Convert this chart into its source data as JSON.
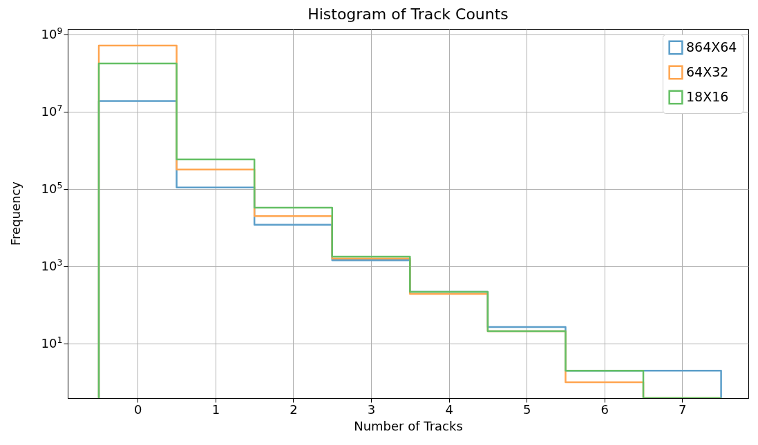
{
  "chart_data": {
    "type": "histogram",
    "title": "Histogram of Track Counts",
    "xlabel": "Number of Tracks",
    "ylabel": "Frequency",
    "bins": [
      -0.5,
      0.5,
      1.5,
      2.5,
      3.5,
      4.5,
      5.5,
      6.5,
      7.5
    ],
    "series": [
      {
        "name": "864X64",
        "color": "#5b9ec9",
        "values": [
          19000000,
          110000,
          12000,
          1440,
          220,
          27,
          2,
          2
        ]
      },
      {
        "name": "64X32",
        "color": "#ffa54f",
        "values": [
          520000000,
          320000,
          20000,
          1600,
          195,
          21,
          1,
          null
        ]
      },
      {
        "name": "18X16",
        "color": "#64bf64",
        "values": [
          180000000,
          590000,
          33000,
          1780,
          220,
          21,
          2,
          null
        ]
      }
    ],
    "log": true,
    "xlim": [
      -0.9,
      7.85
    ],
    "xticks": [
      0,
      1,
      2,
      3,
      4,
      5,
      6,
      7
    ],
    "ylim": [
      0.39,
      1400000000
    ],
    "yticks": [
      {
        "value": 10,
        "label": "10$^{1}$"
      },
      {
        "value": 1000,
        "label": "10$^{3}$"
      },
      {
        "value": 100000,
        "label": "10$^{5}$"
      },
      {
        "value": 10000000,
        "label": "10$^{7}$"
      },
      {
        "value": 1000000000,
        "label": "10$^{9}$"
      }
    ],
    "grid": true,
    "legend": "top right"
  }
}
